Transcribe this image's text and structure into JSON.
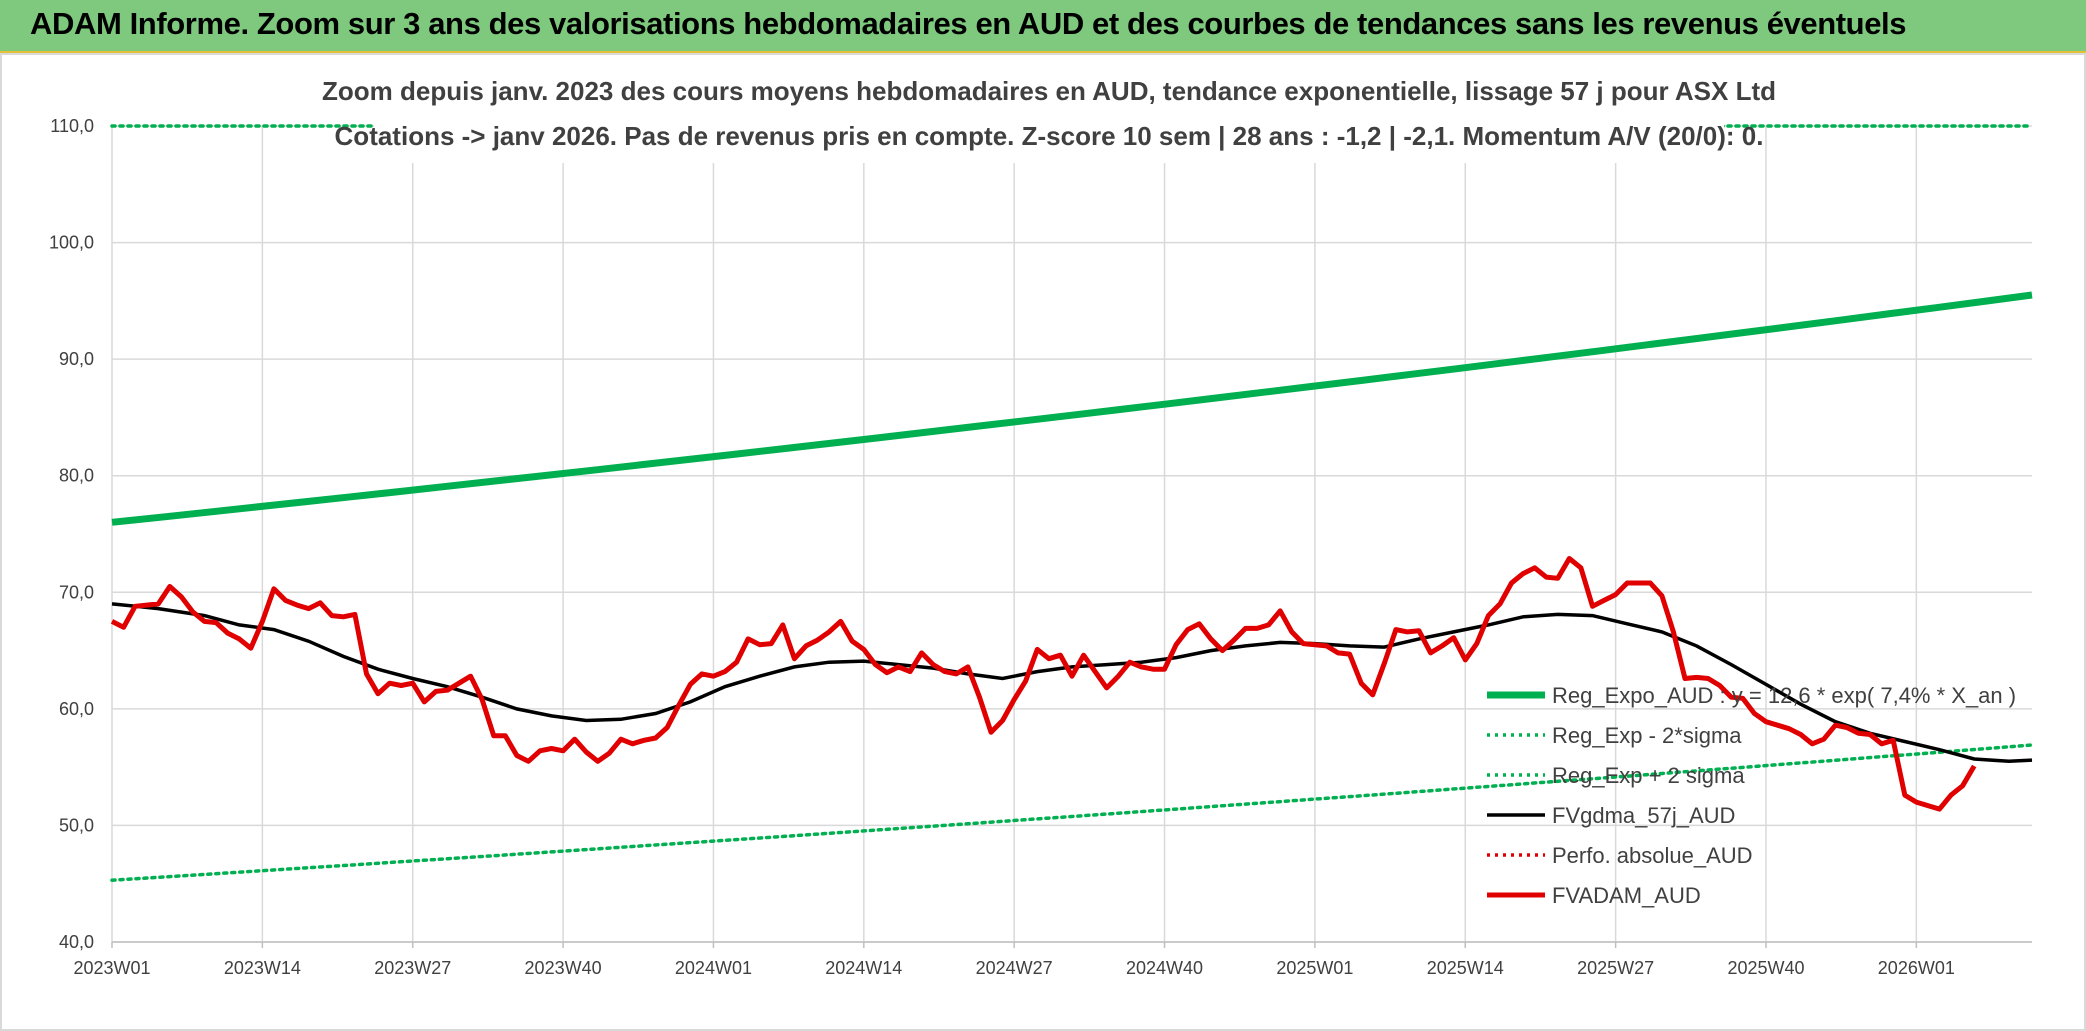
{
  "header": {
    "title": "ADAM Informe. Zoom sur 3 ans des valorisations hebdomadaires en AUD et des courbes de tendances sans les revenus éventuels"
  },
  "chart_data": {
    "type": "line",
    "title": "Zoom depuis janv. 2023 des cours moyens hebdomadaires en AUD, tendance exponentielle, lissage 57 j pour ASX Ltd",
    "subtitle": "Cotations -> janv 2026. Pas de revenus pris en compte. Z-score 10 sem | 28 ans : -1,2 | -2,1. Momentum A/V (20/0): 0.",
    "xlabel": "",
    "ylabel": "",
    "ylim": [
      40,
      110
    ],
    "yticks": [
      "40,0",
      "50,0",
      "60,0",
      "70,0",
      "80,0",
      "90,0",
      "100,0",
      "110,0"
    ],
    "xtick_labels": [
      "2023W01",
      "2023W14",
      "2023W27",
      "2023W40",
      "2024W01",
      "2024W14",
      "2024W27",
      "2024W40",
      "2025W01",
      "2025W14",
      "2025W27",
      "2025W40",
      "2026W01"
    ],
    "grid": true,
    "legend_position": "right",
    "colors": {
      "green": "#00b050",
      "black": "#000000",
      "red": "#e00000",
      "dotred": "#e00000"
    },
    "series": [
      {
        "name": "Reg_Expo_AUD : y = 12,6 * exp( 7,4% *  X_an )",
        "style": "solid-green",
        "start": 76.0,
        "end": 95.5
      },
      {
        "name": "Reg_Exp - 2*sigma",
        "style": "dotted-green",
        "start": 45.3,
        "end": 56.9
      },
      {
        "name": "Reg_Exp + 2 sigma",
        "style": "dotted-green",
        "start": 110.0,
        "end": 110.0
      },
      {
        "name": "FVgdma_57j_AUD",
        "style": "solid-black",
        "values": [
          [
            0,
            69.0
          ],
          [
            4,
            68.6
          ],
          [
            8,
            68.0
          ],
          [
            11,
            67.2
          ],
          [
            14,
            66.8
          ],
          [
            17,
            65.8
          ],
          [
            20,
            64.5
          ],
          [
            23,
            63.4
          ],
          [
            26,
            62.6
          ],
          [
            29,
            61.9
          ],
          [
            32,
            61.0
          ],
          [
            35,
            60.0
          ],
          [
            38,
            59.4
          ],
          [
            41,
            59.0
          ],
          [
            44,
            59.1
          ],
          [
            47,
            59.6
          ],
          [
            50,
            60.6
          ],
          [
            53,
            61.9
          ],
          [
            56,
            62.8
          ],
          [
            59,
            63.6
          ],
          [
            62,
            64.0
          ],
          [
            65,
            64.1
          ],
          [
            68,
            63.8
          ],
          [
            71,
            63.5
          ],
          [
            74,
            63.0
          ],
          [
            77,
            62.6
          ],
          [
            80,
            63.2
          ],
          [
            83,
            63.6
          ],
          [
            86,
            63.8
          ],
          [
            89,
            64.0
          ],
          [
            92,
            64.4
          ],
          [
            95,
            65.0
          ],
          [
            98,
            65.4
          ],
          [
            101,
            65.7
          ],
          [
            104,
            65.6
          ],
          [
            107,
            65.4
          ],
          [
            110,
            65.3
          ],
          [
            113,
            66.0
          ],
          [
            116,
            66.6
          ],
          [
            119,
            67.2
          ],
          [
            122,
            67.9
          ],
          [
            125,
            68.1
          ],
          [
            128,
            68.0
          ],
          [
            131,
            67.3
          ],
          [
            134,
            66.6
          ],
          [
            137,
            65.4
          ],
          [
            140,
            63.8
          ],
          [
            143,
            62.1
          ],
          [
            146,
            60.4
          ],
          [
            149,
            58.9
          ],
          [
            152,
            57.9
          ],
          [
            155,
            57.2
          ],
          [
            158,
            56.5
          ],
          [
            161,
            55.7
          ],
          [
            164,
            55.5
          ],
          [
            166,
            55.6
          ]
        ]
      },
      {
        "name": "Perfo. absolue_AUD",
        "style": "dotted-red"
      },
      {
        "name": "FVADAM_AUD",
        "style": "solid-red",
        "values": [
          [
            0,
            67.5
          ],
          [
            1,
            67.0
          ],
          [
            2,
            68.8
          ],
          [
            3,
            68.9
          ],
          [
            4,
            69.0
          ],
          [
            5,
            70.5
          ],
          [
            6,
            69.6
          ],
          [
            7,
            68.3
          ],
          [
            8,
            67.5
          ],
          [
            9,
            67.4
          ],
          [
            10,
            66.5
          ],
          [
            11,
            66.0
          ],
          [
            12,
            65.2
          ],
          [
            13,
            67.5
          ],
          [
            14,
            70.3
          ],
          [
            15,
            69.3
          ],
          [
            16,
            68.9
          ],
          [
            17,
            68.6
          ],
          [
            18,
            69.1
          ],
          [
            19,
            68.0
          ],
          [
            20,
            67.9
          ],
          [
            21,
            68.1
          ],
          [
            22,
            63.0
          ],
          [
            23,
            61.3
          ],
          [
            24,
            62.2
          ],
          [
            25,
            62.0
          ],
          [
            26,
            62.2
          ],
          [
            27,
            60.6
          ],
          [
            28,
            61.5
          ],
          [
            29,
            61.6
          ],
          [
            30,
            62.2
          ],
          [
            31,
            62.8
          ],
          [
            32,
            60.8
          ],
          [
            33,
            57.7
          ],
          [
            34,
            57.7
          ],
          [
            35,
            56.0
          ],
          [
            36,
            55.5
          ],
          [
            37,
            56.4
          ],
          [
            38,
            56.6
          ],
          [
            39,
            56.4
          ],
          [
            40,
            57.4
          ],
          [
            41,
            56.3
          ],
          [
            42,
            55.5
          ],
          [
            43,
            56.2
          ],
          [
            44,
            57.4
          ],
          [
            45,
            57.0
          ],
          [
            46,
            57.3
          ],
          [
            47,
            57.5
          ],
          [
            48,
            58.4
          ],
          [
            49,
            60.3
          ],
          [
            50,
            62.1
          ],
          [
            51,
            63.0
          ],
          [
            52,
            62.8
          ],
          [
            53,
            63.2
          ],
          [
            54,
            64.0
          ],
          [
            55,
            66.0
          ],
          [
            56,
            65.5
          ],
          [
            57,
            65.6
          ],
          [
            58,
            67.2
          ],
          [
            59,
            64.3
          ],
          [
            60,
            65.4
          ],
          [
            61,
            65.9
          ],
          [
            62,
            66.6
          ],
          [
            63,
            67.5
          ],
          [
            64,
            65.8
          ],
          [
            65,
            65.1
          ],
          [
            66,
            63.8
          ],
          [
            67,
            63.1
          ],
          [
            68,
            63.6
          ],
          [
            69,
            63.2
          ],
          [
            70,
            64.8
          ],
          [
            71,
            63.8
          ],
          [
            72,
            63.2
          ],
          [
            73,
            63.0
          ],
          [
            74,
            63.6
          ],
          [
            75,
            61.0
          ],
          [
            76,
            58.0
          ],
          [
            77,
            59.0
          ],
          [
            78,
            60.8
          ],
          [
            79,
            62.4
          ],
          [
            80,
            65.1
          ],
          [
            81,
            64.3
          ],
          [
            82,
            64.6
          ],
          [
            83,
            62.8
          ],
          [
            84,
            64.6
          ],
          [
            85,
            63.2
          ],
          [
            86,
            61.8
          ],
          [
            87,
            62.8
          ],
          [
            88,
            64.0
          ],
          [
            89,
            63.6
          ],
          [
            90,
            63.4
          ],
          [
            91,
            63.4
          ],
          [
            92,
            65.5
          ],
          [
            93,
            66.8
          ],
          [
            94,
            67.3
          ],
          [
            95,
            66.0
          ],
          [
            96,
            65.0
          ],
          [
            97,
            65.9
          ],
          [
            98,
            66.9
          ],
          [
            99,
            66.9
          ],
          [
            100,
            67.2
          ],
          [
            101,
            68.4
          ],
          [
            102,
            66.6
          ],
          [
            103,
            65.6
          ],
          [
            104,
            65.5
          ],
          [
            105,
            65.4
          ],
          [
            106,
            64.8
          ],
          [
            107,
            64.7
          ],
          [
            108,
            62.2
          ],
          [
            109,
            61.2
          ],
          [
            110,
            63.9
          ],
          [
            111,
            66.8
          ],
          [
            112,
            66.6
          ],
          [
            113,
            66.7
          ],
          [
            114,
            64.8
          ],
          [
            115,
            65.4
          ],
          [
            116,
            66.1
          ],
          [
            117,
            64.2
          ],
          [
            118,
            65.6
          ],
          [
            119,
            68.0
          ],
          [
            120,
            69.0
          ],
          [
            121,
            70.8
          ],
          [
            122,
            71.6
          ],
          [
            123,
            72.1
          ],
          [
            124,
            71.3
          ],
          [
            125,
            71.2
          ],
          [
            126,
            72.9
          ],
          [
            127,
            72.1
          ],
          [
            128,
            68.8
          ],
          [
            129,
            69.3
          ],
          [
            130,
            69.8
          ],
          [
            131,
            70.8
          ],
          [
            132,
            70.8
          ],
          [
            133,
            70.8
          ],
          [
            134,
            69.7
          ],
          [
            135,
            66.6
          ],
          [
            136,
            62.6
          ],
          [
            137,
            62.7
          ],
          [
            138,
            62.6
          ],
          [
            139,
            62.0
          ],
          [
            140,
            61.0
          ],
          [
            141,
            60.9
          ],
          [
            142,
            59.6
          ],
          [
            143,
            58.9
          ],
          [
            144,
            58.6
          ],
          [
            145,
            58.3
          ],
          [
            146,
            57.8
          ],
          [
            147,
            57.0
          ],
          [
            148,
            57.4
          ],
          [
            149,
            58.6
          ],
          [
            150,
            58.4
          ],
          [
            151,
            57.9
          ],
          [
            152,
            57.8
          ],
          [
            153,
            57.0
          ],
          [
            154,
            57.3
          ],
          [
            155,
            52.6
          ],
          [
            156,
            52.0
          ],
          [
            157,
            51.7
          ],
          [
            158,
            51.4
          ],
          [
            159,
            52.6
          ],
          [
            160,
            53.4
          ],
          [
            161,
            55.1
          ]
        ]
      }
    ]
  }
}
